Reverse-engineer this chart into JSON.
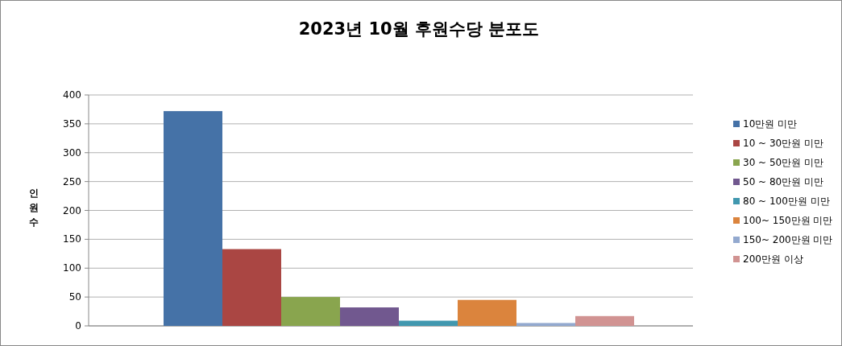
{
  "chart_data": {
    "type": "bar",
    "title": "2023년 10월 후원수당 분포도",
    "ylabel": "인원수",
    "categories": [
      null
    ],
    "series": [
      {
        "name": "10만원 미만",
        "color": "#4572a7",
        "values": [
          372
        ]
      },
      {
        "name": "10 ~ 30만원 미만",
        "color": "#aa4643",
        "values": [
          133
        ]
      },
      {
        "name": "30 ~ 50만원 미만",
        "color": "#89a54e",
        "values": [
          50
        ]
      },
      {
        "name": "50 ~ 80만원 미만",
        "color": "#71588f",
        "values": [
          32
        ]
      },
      {
        "name": "80 ~ 100만원 미만",
        "color": "#4198af",
        "values": [
          9
        ]
      },
      {
        "name": "100~ 150만원 미만",
        "color": "#db843d",
        "values": [
          45
        ]
      },
      {
        "name": "150~ 200만원 미만",
        "color": "#93a9cf",
        "values": [
          5
        ]
      },
      {
        "name": "200만원 이상",
        "color": "#d19392",
        "values": [
          17
        ]
      }
    ],
    "ylim": [
      0,
      400
    ],
    "yticks": [
      0,
      50,
      100,
      150,
      200,
      250,
      300,
      350,
      400
    ],
    "grid": "y",
    "legend": "right"
  }
}
